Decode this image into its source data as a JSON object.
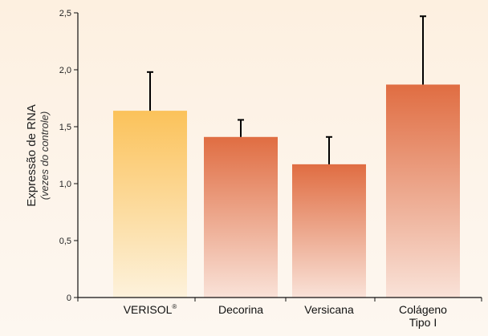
{
  "chart_data": {
    "type": "bar",
    "title": "",
    "ylabel": "Expressão de RNA",
    "ylabel_sub": "(vezes do controle)",
    "xlabel": "",
    "ylim": [
      0,
      2.5
    ],
    "yticks": [
      0,
      0.5,
      1.0,
      1.5,
      2.0,
      2.5
    ],
    "ytick_labels": [
      "0",
      "0,5",
      "1,0",
      "1,5",
      "2,0",
      "2,5"
    ],
    "categories": [
      {
        "label": "VERISOL",
        "superscript": "®"
      },
      {
        "label": "Decorina"
      },
      {
        "label": "Versicana"
      },
      {
        "label": "Colágeno",
        "label2": "Tipo I"
      }
    ],
    "values": [
      1.64,
      1.41,
      1.17,
      1.87
    ],
    "error_upper": [
      1.98,
      1.56,
      1.41,
      2.47
    ],
    "grid": false,
    "colors": {
      "highlight_top": "#fbc25a",
      "highlight_bottom": "#fdf2dc",
      "bar_top": "#e06d42",
      "bar_bottom": "#f9e2d8",
      "axis": "#111111",
      "error_bar": "#000000"
    }
  }
}
